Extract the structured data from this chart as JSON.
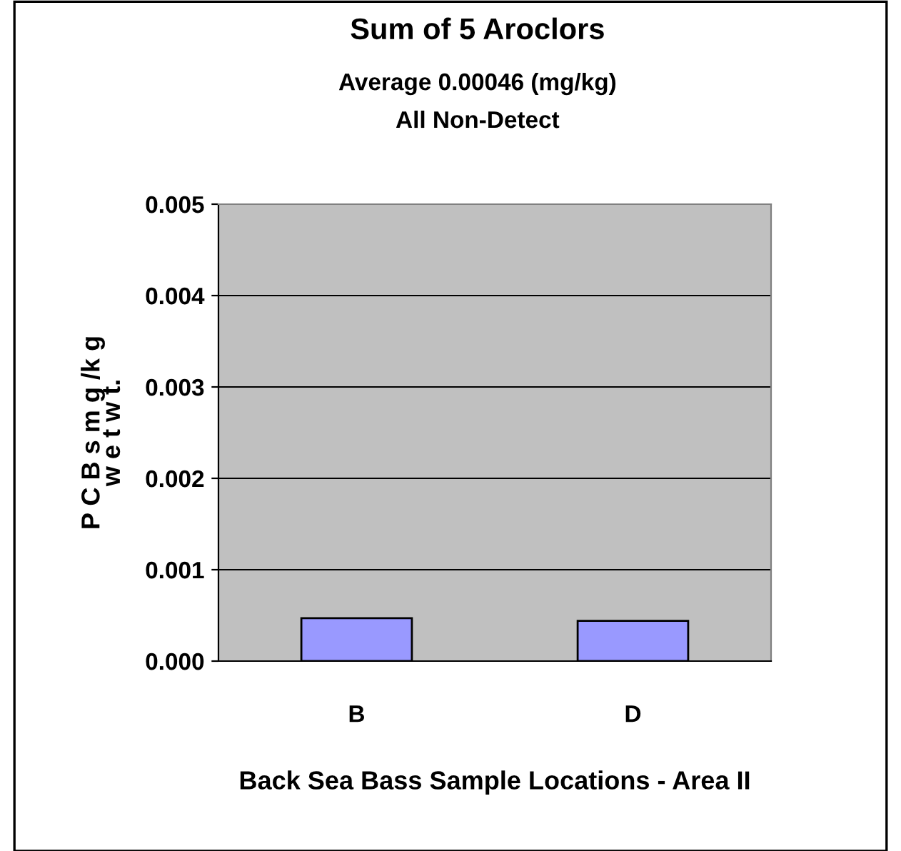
{
  "chart_data": {
    "type": "bar",
    "title": "Sum of 5 Aroclors",
    "subtitle": "Average 0.00046 (mg/kg)\nAll Non-Detect",
    "xlabel": "Back Sea Bass Sample Locations - Area II",
    "ylabel": "P C B s m g /k g\nw e t w t.",
    "categories": [
      "B",
      "D"
    ],
    "series": [
      {
        "color": "#9999ff",
        "values": [
          0.00047,
          0.00044
        ]
      }
    ],
    "ylim": [
      0,
      0.005
    ],
    "yticks": [
      {
        "value": 0,
        "label": "0.000"
      },
      {
        "value": 0.001,
        "label": "0.001"
      },
      {
        "value": 0.002,
        "label": "0.002"
      },
      {
        "value": 0.003,
        "label": "0.003"
      },
      {
        "value": 0.004,
        "label": "0.004"
      },
      {
        "value": 0.005,
        "label": "0.005"
      }
    ],
    "grid": "y",
    "legend": false
  }
}
